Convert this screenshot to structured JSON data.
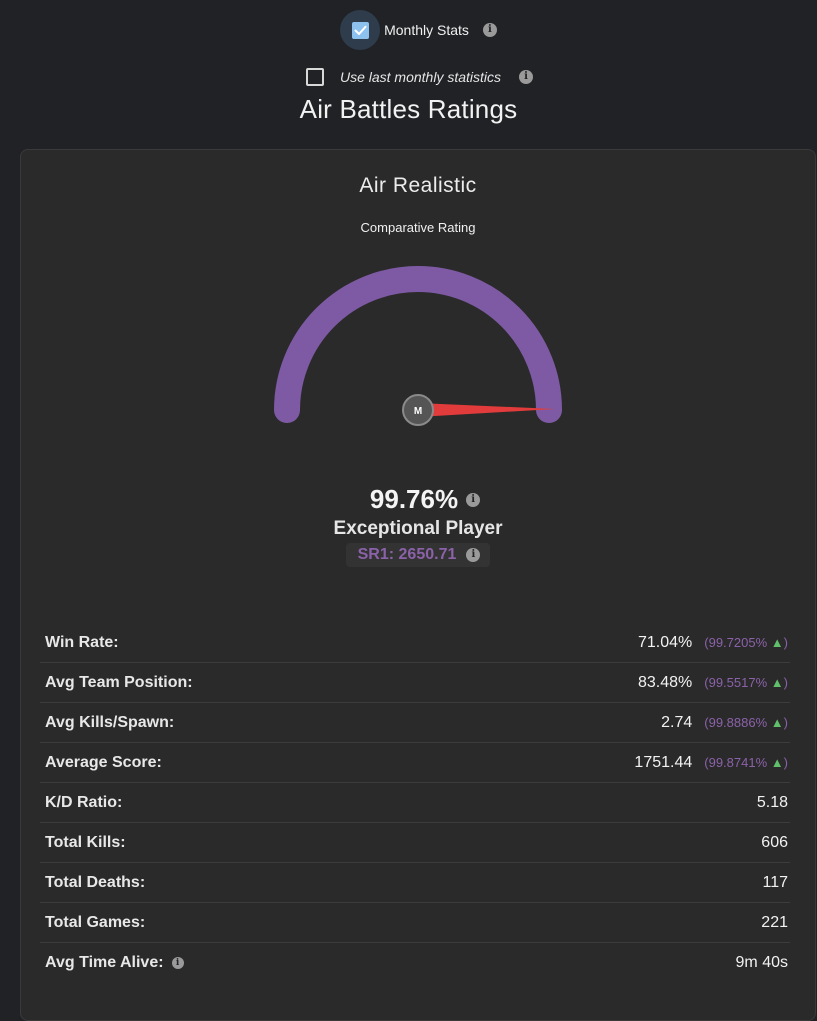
{
  "top": {
    "monthly_stats_label": "Monthly Stats",
    "monthly_stats_checked": true,
    "use_last_label": "Use last monthly statistics",
    "use_last_checked": false
  },
  "page": {
    "title": "Air Battles Ratings"
  },
  "card": {
    "mode_title": "Air Realistic",
    "comparative_label": "Comparative Rating",
    "gauge": {
      "center_label": "M",
      "value_percent": 99.76,
      "arc_color": "#7e5aa4",
      "needle_color": "#e23b3b"
    },
    "percent": "99.76%",
    "rank": "Exceptional Player",
    "sr": "SR1: 2650.71",
    "colors": {
      "accent": "#8b62a9",
      "up_arrow": "#5fbf6a"
    }
  },
  "stats": [
    {
      "label": "Win Rate:",
      "value": "71.04%",
      "pct": "(99.7205%",
      "arrow": "▲",
      "close": ")"
    },
    {
      "label": "Avg Team Position:",
      "value": "83.48%",
      "pct": "(99.5517%",
      "arrow": "▲",
      "close": ")"
    },
    {
      "label": "Avg Kills/Spawn:",
      "value": "2.74",
      "pct": "(99.8886%",
      "arrow": "▲",
      "close": ")"
    },
    {
      "label": "Average Score:",
      "value": "1751.44",
      "pct": "(99.8741%",
      "arrow": "▲",
      "close": ")"
    },
    {
      "label": "K/D Ratio:",
      "value": "5.18"
    },
    {
      "label": "Total Kills:",
      "value": "606"
    },
    {
      "label": "Total Deaths:",
      "value": "117"
    },
    {
      "label": "Total Games:",
      "value": "221"
    },
    {
      "label": "Avg Time Alive:",
      "value": "9m 40s",
      "info": true
    }
  ]
}
